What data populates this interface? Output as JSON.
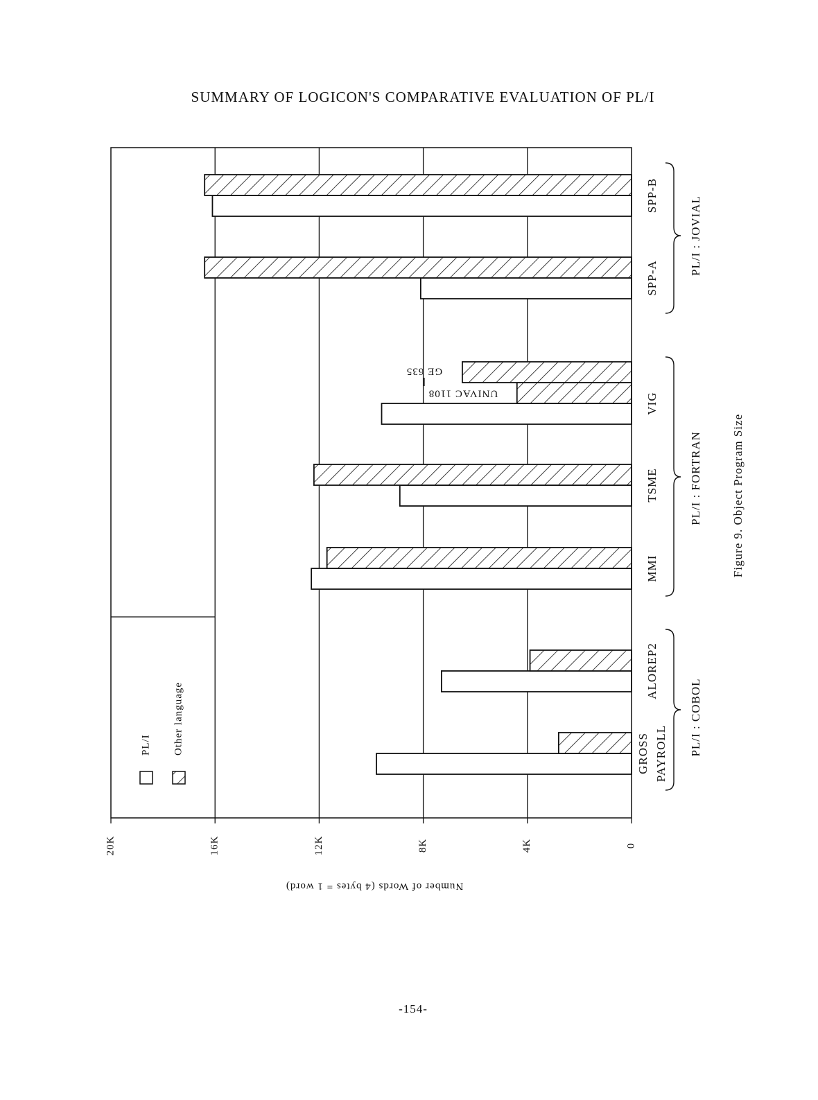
{
  "page_number": "-154-",
  "chart_data": {
    "type": "bar",
    "orientation": "horizontal",
    "title": "SUMMARY OF LOGICON'S COMPARATIVE EVALUATION OF PL/I",
    "caption": "Figure 9.  Object Program Size",
    "axis_label": "Number of Words (4 bytes = 1 word)",
    "categories": [
      "GROSS PAYROLL",
      "ALOREP2",
      "MMI",
      "TSME",
      "VIG",
      "SPP-A",
      "SPP-B"
    ],
    "group_labels": [
      "PL/I : COBOL",
      "PL/I : FORTRAN",
      "PL/I : JOVIAL"
    ],
    "series": [
      {
        "name": "PL/I",
        "pattern": "none",
        "values": [
          9800,
          7300,
          12300,
          8900,
          9600,
          8100,
          16100
        ]
      },
      {
        "name": "Other language",
        "pattern": "hatch",
        "values": [
          2800,
          3900,
          11700,
          12200,
          null,
          16400,
          16400
        ]
      }
    ],
    "annotations": [
      {
        "label": "UNIVAC 1108",
        "value": 4400
      },
      {
        "label": "GE 635",
        "value": 6500
      }
    ],
    "ylim": [
      0,
      20000
    ],
    "yticks": [
      0,
      {
        "value": 4000,
        "label": "4K"
      },
      {
        "value": 8000,
        "label": "8K"
      },
      {
        "value": 12000,
        "label": "12K"
      },
      {
        "value": 16000,
        "label": "16K"
      },
      {
        "value": 20000,
        "label": "20K"
      }
    ],
    "grid": true,
    "legend": "bottom-left"
  }
}
